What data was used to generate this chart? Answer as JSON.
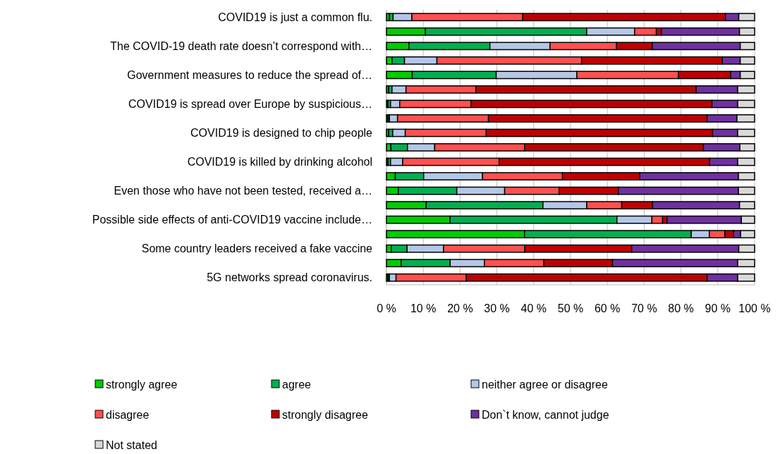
{
  "chart_data": {
    "type": "bar",
    "orientation": "horizontal",
    "stacked": true,
    "categories": [
      "COVID19 is just a common flu.",
      null,
      "The COVID-19 death rate doesn’t correspond with…",
      null,
      "Government measures to reduce the spread of…",
      null,
      "COVID19 is spread over Europe by suspicious…",
      null,
      "COVID19 is designed to chip people",
      null,
      "COVID19 is killed by drinking alcohol",
      null,
      "Even those who have not been tested, received a…",
      null,
      "Possible side effects of anti-COVID19 vaccine include…",
      null,
      "Some country leaders received a fake vaccine",
      null,
      "5G networks spread coronavirus."
    ],
    "series": [
      {
        "name": "strongly agree",
        "color": "#00cc00",
        "values": [
          0.8,
          10.6,
          6.1,
          1.5,
          7.0,
          0.6,
          0.4,
          0.4,
          0.6,
          1.2,
          0.4,
          2.4,
          3.2,
          10.8,
          17.3,
          37.5,
          1.3,
          4.0,
          0.4
        ]
      },
      {
        "name": "agree",
        "color": "#00b050",
        "values": [
          1.0,
          43.8,
          22.0,
          3.4,
          22.8,
          0.9,
          0.7,
          0.4,
          1.1,
          4.5,
          0.7,
          7.7,
          15.9,
          31.7,
          45.3,
          45.3,
          4.3,
          13.3,
          0.4
        ]
      },
      {
        "name": "neither agree or disagree",
        "color": "#b4c7e7",
        "values": [
          5.1,
          13.0,
          16.3,
          8.8,
          21.9,
          3.8,
          2.5,
          2.2,
          3.4,
          7.4,
          3.3,
          16.0,
          13.0,
          11.9,
          9.5,
          4.9,
          9.9,
          9.3,
          1.8
        ]
      },
      {
        "name": "disagree",
        "color": "#ff5050",
        "values": [
          30.1,
          5.9,
          18.1,
          39.3,
          27.6,
          19.0,
          19.4,
          24.7,
          22.0,
          24.4,
          26.2,
          21.7,
          14.8,
          9.5,
          2.9,
          4.2,
          22.1,
          16.1,
          19.1
        ]
      },
      {
        "name": "strongly disagree",
        "color": "#c00000",
        "values": [
          55.1,
          1.4,
          9.7,
          38.2,
          14.2,
          59.8,
          65.4,
          59.4,
          61.5,
          48.6,
          57.2,
          21.0,
          16.1,
          8.4,
          1.2,
          2.4,
          29.0,
          18.7,
          65.4
        ]
      },
      {
        "name": "Don`t know, cannot judge",
        "color": "#7030a0",
        "values": [
          3.6,
          21.2,
          23.9,
          4.9,
          2.6,
          11.3,
          7.0,
          8.1,
          6.8,
          9.9,
          7.6,
          26.8,
          32.6,
          23.6,
          20.2,
          1.9,
          29.1,
          34.0,
          8.3
        ]
      },
      {
        "name": "Not stated",
        "color": "#d9d9d9",
        "values": [
          4.3,
          4.1,
          3.9,
          3.9,
          3.9,
          4.6,
          4.6,
          4.8,
          4.6,
          4.0,
          4.6,
          4.4,
          4.4,
          4.1,
          3.6,
          3.8,
          4.3,
          4.6,
          4.6
        ]
      }
    ],
    "xlim": [
      0,
      100
    ],
    "xticks": [
      {
        "value": 0,
        "label": "0 %"
      },
      {
        "value": 10,
        "label": "10 %"
      },
      {
        "value": 20,
        "label": "20 %"
      },
      {
        "value": 30,
        "label": "30 %"
      },
      {
        "value": 40,
        "label": "40 %"
      },
      {
        "value": 50,
        "label": "50 %"
      },
      {
        "value": 60,
        "label": "60 %"
      },
      {
        "value": 70,
        "label": "70 %"
      },
      {
        "value": 80,
        "label": "80 %"
      },
      {
        "value": 90,
        "label": "90 %"
      },
      {
        "value": 100,
        "label": "100 %"
      }
    ],
    "grid": "x",
    "legend": "bottom"
  }
}
